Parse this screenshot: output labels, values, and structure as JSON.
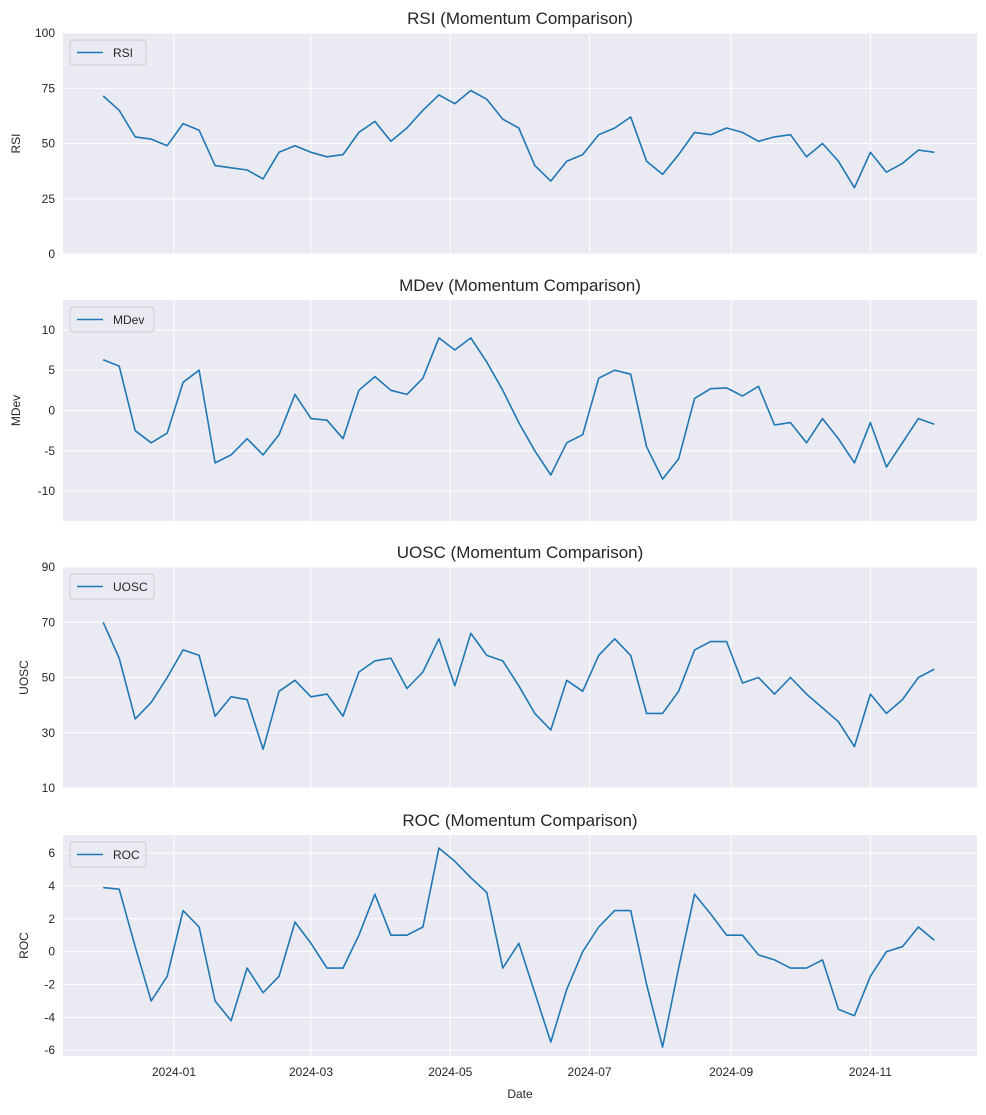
{
  "chart_data": [
    {
      "type": "line",
      "title": "RSI (Momentum Comparison)",
      "ylabel": "RSI",
      "legend": "upper-left",
      "grid": true,
      "ylim": [
        0,
        100
      ],
      "yticks": [
        0,
        25,
        50,
        75,
        100
      ],
      "series": [
        {
          "name": "RSI",
          "color": "#1f77b4",
          "values": [
            71.5,
            65,
            53,
            52,
            49,
            59,
            56,
            40,
            39,
            38,
            34,
            46,
            49,
            46,
            44,
            45,
            55,
            60,
            51,
            57,
            65,
            72,
            68,
            74,
            70,
            61,
            57,
            40,
            33,
            42,
            45,
            54,
            57,
            62,
            42,
            36,
            45,
            55,
            54,
            57,
            55,
            51,
            53,
            54,
            44,
            50,
            42,
            30,
            46,
            37,
            41,
            47,
            46
          ]
        }
      ]
    },
    {
      "type": "line",
      "title": "MDev (Momentum Comparison)",
      "ylabel": "MDev",
      "legend": "upper-left",
      "grid": true,
      "ylim": [
        -13.7,
        13.7
      ],
      "yticks": [
        -10,
        -5,
        0,
        5,
        10
      ],
      "series": [
        {
          "name": "MDev",
          "color": "#1f77b4",
          "values": [
            6.3,
            5.5,
            -2.5,
            -4,
            -2.8,
            3.5,
            5,
            -6.5,
            -5.5,
            -3.5,
            -5.5,
            -3,
            2,
            -1,
            -1.2,
            -3.5,
            2.5,
            4.2,
            2.5,
            2,
            4,
            9,
            7.5,
            9,
            6,
            2.5,
            -1.5,
            -5,
            -8,
            -4,
            -3,
            4,
            5,
            4.5,
            -4.5,
            -8.5,
            -6,
            1.5,
            2.7,
            2.8,
            1.8,
            3,
            -1.8,
            -1.5,
            -4,
            -1,
            -3.5,
            -6.5,
            -1.5,
            -7,
            -4,
            -1,
            -1.7
          ]
        }
      ]
    },
    {
      "type": "line",
      "title": "UOSC (Momentum Comparison)",
      "ylabel": "UOSC",
      "legend": "upper-left",
      "grid": true,
      "ylim": [
        10,
        90
      ],
      "yticks": [
        10,
        30,
        50,
        70,
        90
      ],
      "series": [
        {
          "name": "UOSC",
          "color": "#1f77b4",
          "values": [
            70,
            57,
            35,
            41,
            50,
            60,
            58,
            36,
            43,
            42,
            24,
            45,
            49,
            43,
            44,
            36,
            52,
            56,
            57,
            46,
            52,
            64,
            47,
            66,
            58,
            56,
            47,
            37,
            31,
            49,
            45,
            58,
            64,
            58,
            37,
            37,
            45,
            60,
            63,
            63,
            48,
            50,
            44,
            50,
            44,
            39,
            34,
            25,
            44,
            37,
            42,
            50,
            53
          ]
        }
      ]
    },
    {
      "type": "line",
      "title": "ROC (Momentum Comparison)",
      "ylabel": "ROC",
      "xlabel": "Date",
      "legend": "upper-left",
      "grid": true,
      "ylim": [
        -6.35,
        7.1
      ],
      "yticks": [
        -6,
        -4,
        -2,
        0,
        2,
        4,
        6
      ],
      "series": [
        {
          "name": "ROC",
          "color": "#1f77b4",
          "values": [
            3.9,
            3.8,
            0.3,
            -3,
            -1.5,
            2.5,
            1.5,
            -3,
            -4.2,
            -1,
            -2.5,
            -1.5,
            1.8,
            0.5,
            -1,
            -1,
            1,
            3.5,
            1,
            1,
            1.5,
            6.3,
            5.5,
            4.5,
            3.6,
            -1,
            0.5,
            -2.5,
            -5.5,
            -2.3,
            0,
            1.5,
            2.5,
            2.5,
            -2,
            -5.8,
            -1,
            3.5,
            2.3,
            1,
            1,
            -0.2,
            -0.5,
            -1,
            -1,
            -0.5,
            -3.5,
            -3.9,
            -1.5,
            0,
            0.3,
            1.5,
            0.7
          ]
        }
      ]
    }
  ],
  "x_start": "2023-12-01",
  "x_step_days": 7,
  "xticks": [
    "2024-01",
    "2024-03",
    "2024-05",
    "2024-07",
    "2024-09",
    "2024-11"
  ],
  "colors": {
    "background": "#eaeaf2",
    "grid": "#ffffff",
    "line": "#1f77b4"
  }
}
